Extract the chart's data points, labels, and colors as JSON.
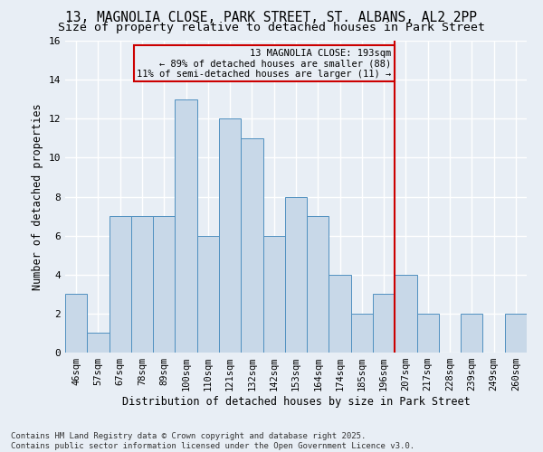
{
  "title": "13, MAGNOLIA CLOSE, PARK STREET, ST. ALBANS, AL2 2PP",
  "subtitle": "Size of property relative to detached houses in Park Street",
  "xlabel": "Distribution of detached houses by size in Park Street",
  "ylabel": "Number of detached properties",
  "footer_line1": "Contains HM Land Registry data © Crown copyright and database right 2025.",
  "footer_line2": "Contains public sector information licensed under the Open Government Licence v3.0.",
  "bin_labels": [
    "46sqm",
    "57sqm",
    "67sqm",
    "78sqm",
    "89sqm",
    "100sqm",
    "110sqm",
    "121sqm",
    "132sqm",
    "142sqm",
    "153sqm",
    "164sqm",
    "174sqm",
    "185sqm",
    "196sqm",
    "207sqm",
    "217sqm",
    "228sqm",
    "239sqm",
    "249sqm",
    "260sqm"
  ],
  "bar_values": [
    3,
    1,
    7,
    7,
    7,
    13,
    6,
    12,
    11,
    6,
    8,
    7,
    4,
    2,
    3,
    4,
    2,
    0,
    2,
    0,
    2
  ],
  "bar_color": "#c8d8e8",
  "bar_edge_color": "#5090c0",
  "annotation_text": "13 MAGNOLIA CLOSE: 193sqm\n← 89% of detached houses are smaller (88)\n11% of semi-detached houses are larger (11) →",
  "annotation_box_edge_color": "#cc0000",
  "vline_color": "#cc0000",
  "vline_x_index": 14.5,
  "ylim": [
    0,
    16
  ],
  "yticks": [
    0,
    2,
    4,
    6,
    8,
    10,
    12,
    14,
    16
  ],
  "bg_color": "#e8eef5",
  "grid_color": "#ffffff",
  "title_fontsize": 10.5,
  "subtitle_fontsize": 9.5,
  "xlabel_fontsize": 8.5,
  "ylabel_fontsize": 8.5,
  "tick_fontsize": 7.5,
  "footer_fontsize": 6.5,
  "annot_fontsize": 7.5
}
